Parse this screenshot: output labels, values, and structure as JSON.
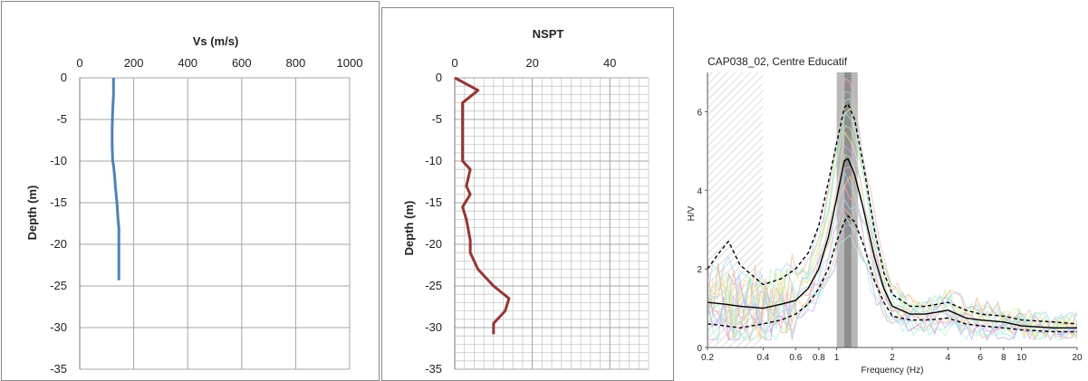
{
  "chart_data": [
    {
      "type": "line",
      "title": "Vs (m/s)",
      "xlabel": "",
      "ylabel": "Depth (m)",
      "xlim": [
        0,
        1000
      ],
      "ylim": [
        -35,
        0
      ],
      "x_ticks": [
        "0",
        "200",
        "400",
        "600",
        "800",
        "1000"
      ],
      "y_ticks": [
        "0",
        "-5",
        "-10",
        "-15",
        "-20",
        "-25",
        "-30",
        "-35"
      ],
      "grid": true,
      "line_color": "#4f81bd",
      "series": [
        {
          "x": [
            125,
            125,
            122,
            120,
            120,
            122,
            125,
            130,
            132,
            135,
            138,
            140,
            142,
            145,
            145,
            145
          ],
          "y": [
            0,
            -2,
            -4,
            -6,
            -8,
            -10,
            -10.5,
            -12,
            -13,
            -14,
            -15,
            -16,
            -17,
            -18,
            -21,
            -24.3
          ]
        }
      ]
    },
    {
      "type": "line",
      "title": "NSPT",
      "xlabel": "",
      "ylabel": "Depth (m)",
      "xlim": [
        0,
        50
      ],
      "ylim": [
        -35,
        0
      ],
      "x_ticks": [
        "0",
        "20",
        "40"
      ],
      "y_ticks": [
        "0",
        "-5",
        "-10",
        "-15",
        "-20",
        "-25",
        "-30",
        "-35"
      ],
      "grid": true,
      "line_color": "#943634",
      "series": [
        {
          "x": [
            0,
            6,
            2,
            2,
            2,
            4,
            3,
            4,
            2,
            3,
            4,
            4,
            6,
            10,
            14,
            13,
            10,
            10
          ],
          "y": [
            0,
            -1.5,
            -3,
            -6,
            -10,
            -11,
            -13,
            -14,
            -15.5,
            -17,
            -19.5,
            -21,
            -23,
            -25,
            -26.5,
            -28,
            -29.5,
            -30.8
          ]
        }
      ]
    },
    {
      "type": "line",
      "title": "CAP038_02, Centre Educatif",
      "xlabel": "Frequency (Hz)",
      "ylabel": "H/V",
      "x_scale": "log",
      "xlim": [
        0.2,
        20
      ],
      "ylim": [
        0,
        7
      ],
      "x_ticks": [
        "0.2",
        "0.4",
        "0.6",
        "0.8",
        "1",
        "2",
        "4",
        "6",
        "8",
        "10",
        "20"
      ],
      "y_ticks": [
        "0",
        "2",
        "4",
        "6"
      ],
      "peak_band": [
        1.0,
        1.3
      ],
      "peak_inner": [
        1.1,
        1.2
      ],
      "series": [
        {
          "style": "solid",
          "color": "#000000",
          "x": [
            0.2,
            0.25,
            0.3,
            0.4,
            0.5,
            0.6,
            0.7,
            0.8,
            0.9,
            1.0,
            1.1,
            1.15,
            1.25,
            1.4,
            1.6,
            1.8,
            2.0,
            2.5,
            3.0,
            3.5,
            4.0,
            5.0,
            6.0,
            8.0,
            10.0,
            15.0,
            20.0
          ],
          "y": [
            1.15,
            1.1,
            1.05,
            1.0,
            1.1,
            1.2,
            1.5,
            2.0,
            2.8,
            3.8,
            4.75,
            4.8,
            4.4,
            3.5,
            2.3,
            1.5,
            1.05,
            0.85,
            0.85,
            0.9,
            0.95,
            0.75,
            0.7,
            0.65,
            0.55,
            0.5,
            0.5
          ]
        },
        {
          "style": "dashed",
          "color": "#000000",
          "x": [
            0.2,
            0.23,
            0.26,
            0.3,
            0.4,
            0.5,
            0.6,
            0.7,
            0.8,
            0.9,
            1.0,
            1.1,
            1.15,
            1.25,
            1.4,
            1.6,
            1.8,
            2.0,
            2.5,
            3.0,
            3.5,
            4.0,
            5.0,
            6.0,
            8.0,
            10.0,
            15.0,
            20.0
          ],
          "y": [
            2.0,
            2.4,
            2.7,
            2.1,
            1.6,
            1.75,
            2.0,
            2.4,
            3.1,
            4.2,
            5.2,
            6.1,
            6.2,
            5.8,
            4.6,
            3.0,
            1.9,
            1.35,
            1.05,
            1.05,
            1.1,
            1.15,
            0.95,
            0.85,
            0.8,
            0.7,
            0.65,
            0.6
          ]
        },
        {
          "style": "dashed",
          "color": "#000000",
          "x": [
            0.2,
            0.25,
            0.3,
            0.4,
            0.5,
            0.6,
            0.7,
            0.8,
            0.9,
            1.0,
            1.1,
            1.15,
            1.25,
            1.4,
            1.6,
            1.8,
            2.0,
            2.5,
            3.0,
            3.5,
            4.0,
            5.0,
            6.0,
            8.0,
            10.0,
            15.0,
            20.0
          ],
          "y": [
            0.6,
            0.55,
            0.5,
            0.6,
            0.7,
            0.85,
            1.1,
            1.5,
            2.0,
            2.7,
            3.2,
            3.35,
            3.2,
            2.6,
            1.7,
            1.15,
            0.8,
            0.7,
            0.7,
            0.72,
            0.75,
            0.6,
            0.55,
            0.5,
            0.45,
            0.4,
            0.4
          ]
        }
      ]
    }
  ]
}
